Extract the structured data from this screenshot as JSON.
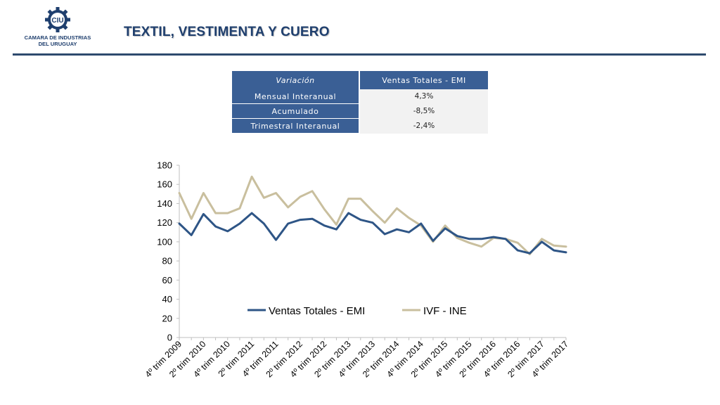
{
  "header": {
    "logo_text_line1": "CAMARA DE INDUSTRIAS",
    "logo_text_line2": "DEL URUGUAY",
    "logo_mark_text": "CIU",
    "title": "TEXTIL, VESTIMENTA Y CUERO"
  },
  "summary_table": {
    "col1_header": "Variación",
    "col2_header": "Ventas Totales - EMI",
    "rows": [
      {
        "label": "Mensual Interanual",
        "value": "4,3%"
      },
      {
        "label": "Acumulado",
        "value": "-8,5%"
      },
      {
        "label": "Trimestral Interanual",
        "value": "-2,4%"
      }
    ]
  },
  "colors": {
    "brand_blue": "#1f3f6e",
    "table_blue": "#3a5f95",
    "series_emi": "#2e5586",
    "series_ivf": "#c9bf9e"
  },
  "chart_data": {
    "type": "line",
    "x": [
      "4º trim 2009",
      "1º trim 2010",
      "2º trim 2010",
      "3º trim 2010",
      "4º trim 2010",
      "1º trim 2011",
      "2º trim 2011",
      "3º trim 2011",
      "4º trim 2011",
      "1º trim 2012",
      "2º trim 2012",
      "3º trim 2012",
      "4º trim 2012",
      "1º trim 2013",
      "2º trim 2013",
      "3º trim 2013",
      "4º trim 2013",
      "1º trim 2014",
      "2º trim 2014",
      "3º trim 2014",
      "4º trim 2014",
      "1º trim 2015",
      "2º trim 2015",
      "3º trim 2015",
      "4º trim 2015",
      "1º trim 2016",
      "2º trim 2016",
      "3º trim 2016",
      "4º trim 2016",
      "1º trim 2017",
      "2º trim 2017",
      "3º trim 2017",
      "4º trim 2017"
    ],
    "tick_labels": [
      "4º trim 2009",
      "2º trim 2010",
      "4º trim 2010",
      "2º trim 2011",
      "4º trim 2011",
      "2º trim 2012",
      "4º trim 2012",
      "2º trim 2013",
      "4º trim 2013",
      "2º trim 2014",
      "4º trim 2014",
      "2º trim 2015",
      "4º trim 2015",
      "2º trim 2016",
      "4º trim 2016",
      "2º trim 2017",
      "4º trim 2017"
    ],
    "series": [
      {
        "name": "Ventas Totales - EMI",
        "values": [
          119,
          107,
          129,
          116,
          111,
          119,
          130,
          119,
          102,
          119,
          123,
          124,
          117,
          113,
          130,
          123,
          120,
          108,
          113,
          110,
          119,
          101,
          114,
          106,
          103,
          103,
          105,
          103,
          91,
          88,
          100,
          91,
          89
        ]
      },
      {
        "name": "IVF - INE",
        "values": [
          151,
          124,
          151,
          130,
          130,
          135,
          168,
          146,
          151,
          136,
          147,
          153,
          134,
          118,
          145,
          145,
          132,
          120,
          135,
          125,
          117,
          100,
          117,
          104,
          99,
          95,
          104,
          103,
          99,
          87,
          103,
          96,
          95
        ]
      }
    ],
    "ylim": [
      0,
      180
    ],
    "yticks": [
      0,
      20,
      40,
      60,
      80,
      100,
      120,
      140,
      160,
      180
    ],
    "legend": "inside-bottom-center",
    "grid": false
  }
}
